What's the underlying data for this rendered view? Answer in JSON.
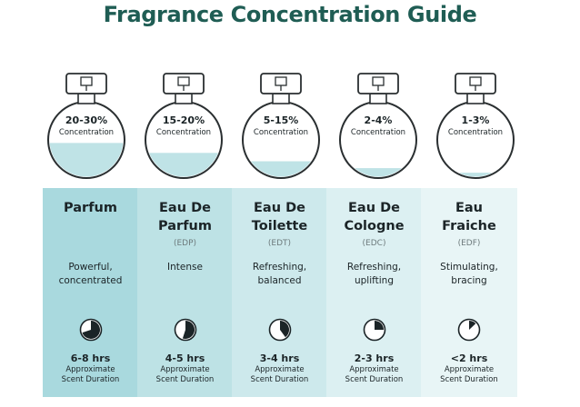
{
  "title": "Fragrance Concentration Guide",
  "colors": {
    "title": "#1f5d54",
    "liquid": "#bfe3e6",
    "outline": "#2a2f31",
    "table_bg": [
      "#a9d9de",
      "#bde2e5",
      "#cde9ec",
      "#dcf0f2",
      "#e8f5f6"
    ]
  },
  "types": [
    {
      "name_line1": "Parfum",
      "name_line2": "",
      "abbr": "",
      "desc_line1": "Powerful,",
      "desc_line2": "concentrated",
      "concentration": "20-30%",
      "concentration_label": "Concentration",
      "duration": "6-8 hrs",
      "approx_line1": "Approximate",
      "approx_line2": "Scent Duration",
      "fill_level": 0.46,
      "timer_fraction": 0.7,
      "icon": "timer-icon"
    },
    {
      "name_line1": "Eau De",
      "name_line2": "Parfum",
      "abbr": "(EDP)",
      "desc_line1": "Intense",
      "desc_line2": "",
      "concentration": "15-20%",
      "concentration_label": "Concentration",
      "duration": "4-5 hrs",
      "approx_line1": "Approximate",
      "approx_line2": "Scent Duration",
      "fill_level": 0.33,
      "timer_fraction": 0.55,
      "icon": "timer-icon"
    },
    {
      "name_line1": "Eau De",
      "name_line2": "Toilette",
      "abbr": "(EDT)",
      "desc_line1": "Refreshing,",
      "desc_line2": "balanced",
      "concentration": "5-15%",
      "concentration_label": "Concentration",
      "duration": "3-4 hrs",
      "approx_line1": "Approximate",
      "approx_line2": "Scent Duration",
      "fill_level": 0.22,
      "timer_fraction": 0.4,
      "icon": "timer-icon"
    },
    {
      "name_line1": "Eau De",
      "name_line2": "Cologne",
      "abbr": "(EDC)",
      "desc_line1": "Refreshing,",
      "desc_line2": "uplifting",
      "concentration": "2-4%",
      "concentration_label": "Concentration",
      "duration": "2-3 hrs",
      "approx_line1": "Approximate",
      "approx_line2": "Scent Duration",
      "fill_level": 0.13,
      "timer_fraction": 0.25,
      "icon": "timer-icon"
    },
    {
      "name_line1": "Eau",
      "name_line2": "Fraiche",
      "abbr": "(EDF)",
      "desc_line1": "Stimulating,",
      "desc_line2": "bracing",
      "concentration": "1-3%",
      "concentration_label": "Concentration",
      "duration": "<2 hrs",
      "approx_line1": "Approximate",
      "approx_line2": "Scent Duration",
      "fill_level": 0.07,
      "timer_fraction": 0.13,
      "icon": "timer-icon"
    }
  ]
}
